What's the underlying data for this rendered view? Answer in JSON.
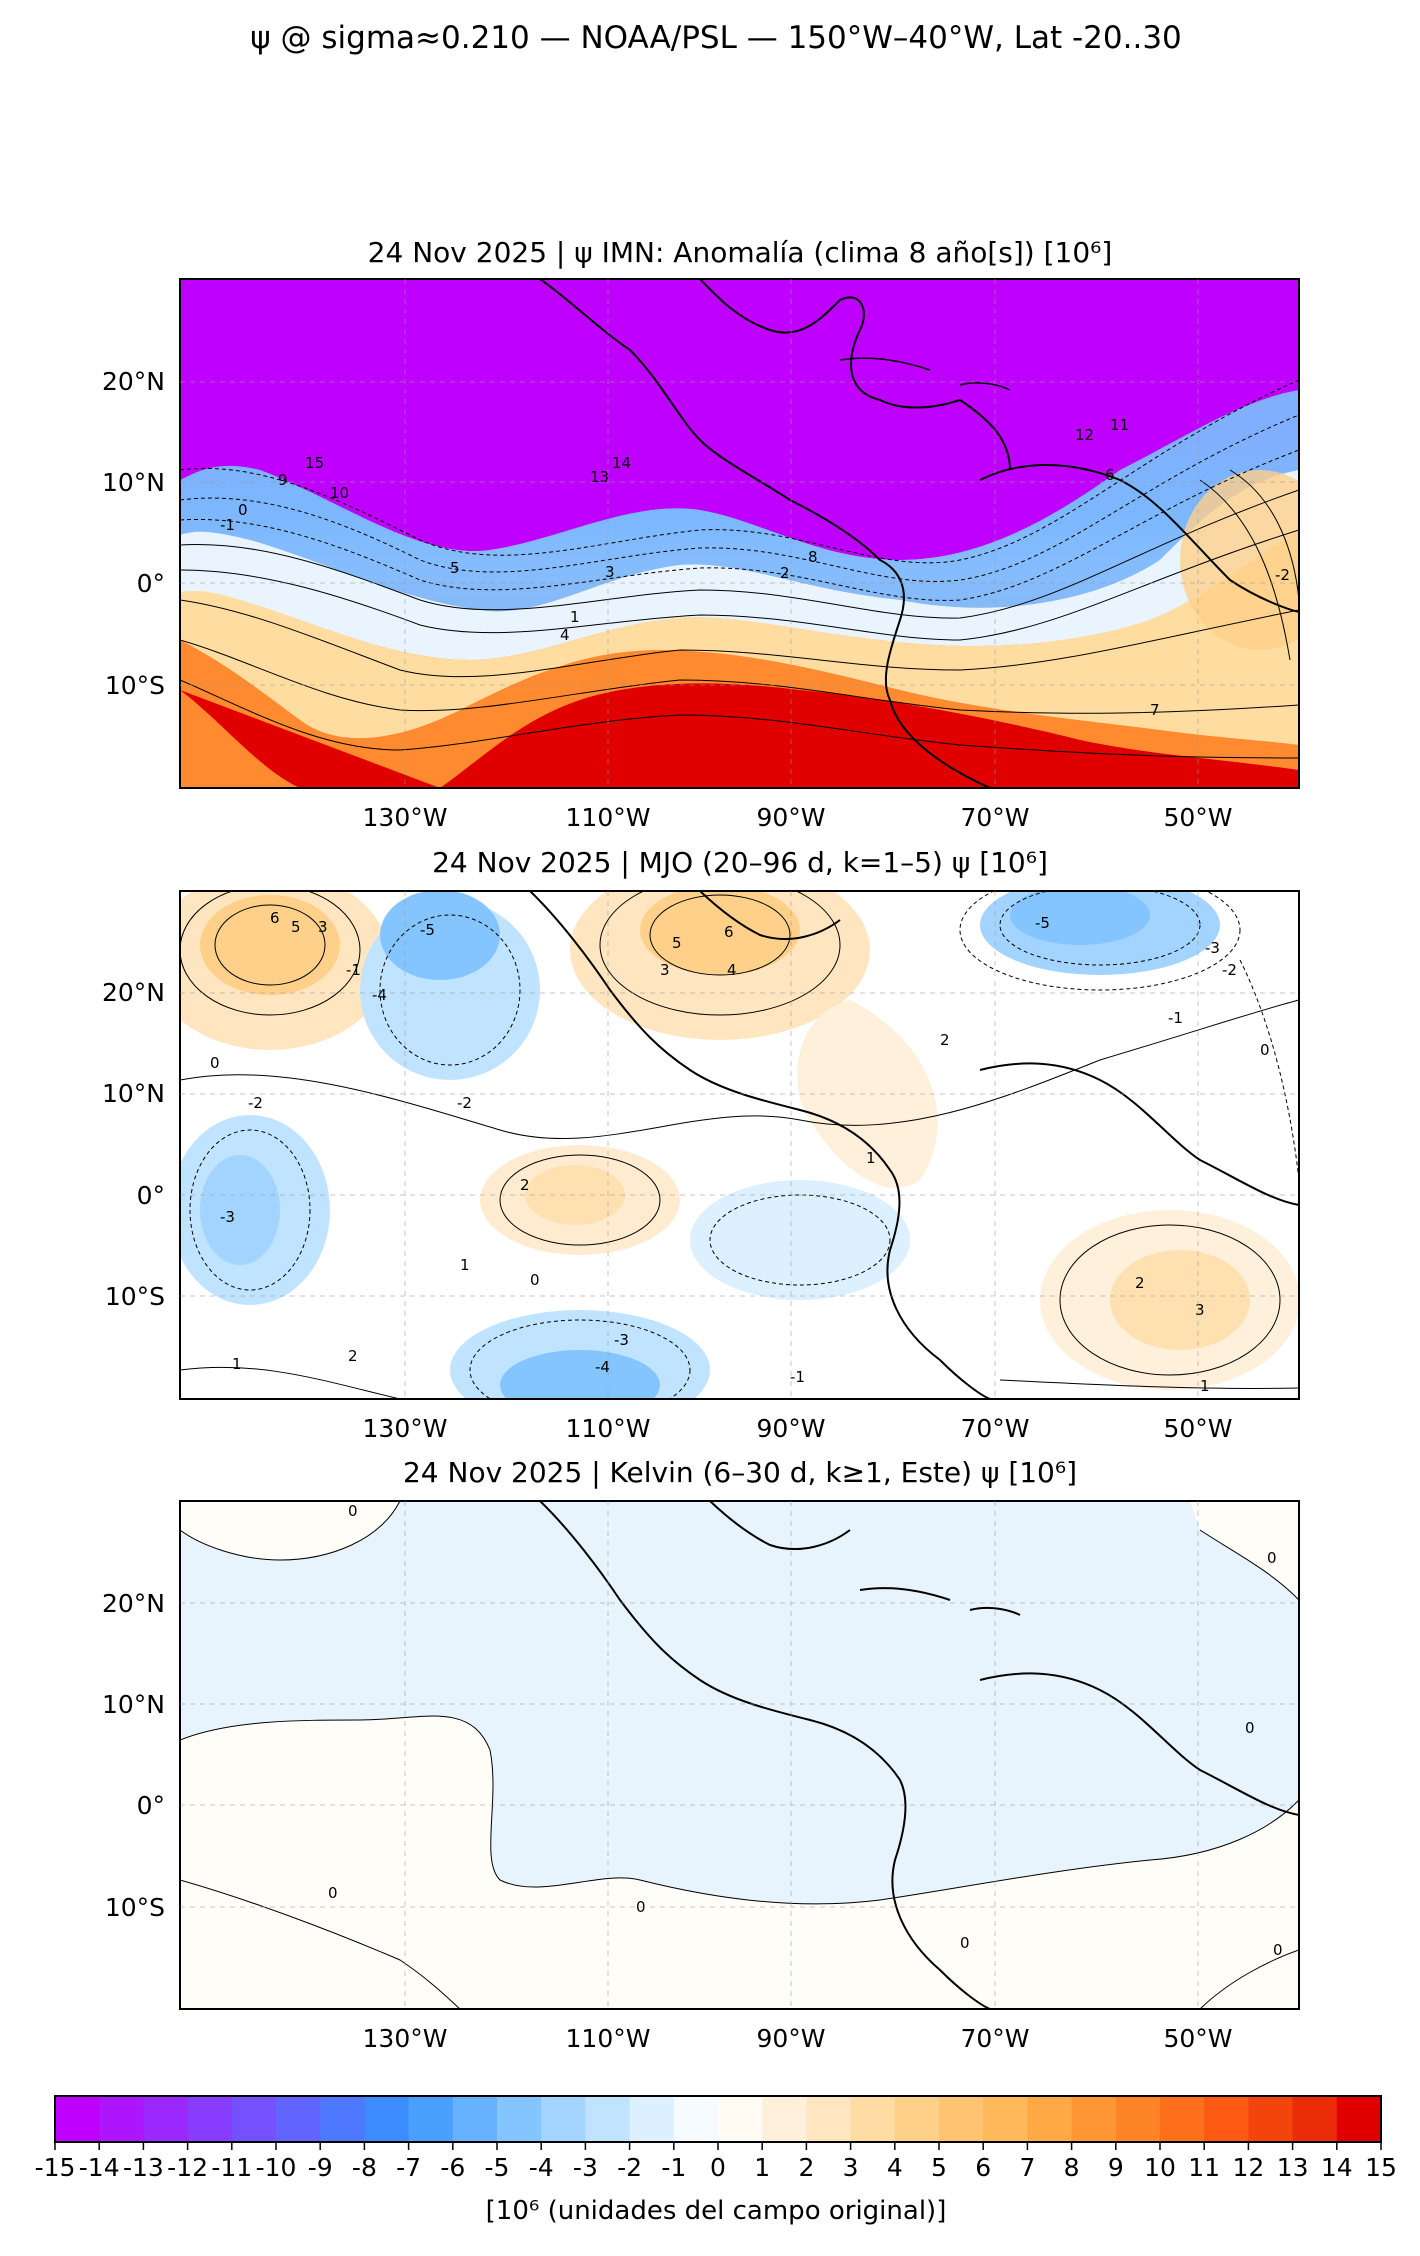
{
  "suptitle": "ψ @ sigma≈0.210 — NOAA/PSL — 150°W–40°W, Lat -20..30",
  "panels": [
    {
      "title": "24 Nov 2025 | ψ IMN: Anomalía (clima 8 año[s]) [10⁶]",
      "contour_labels": [
        "15",
        "14",
        "13",
        "12",
        "11",
        "10",
        "9",
        "8",
        "7",
        "6",
        "5",
        "4",
        "3",
        "2",
        "1",
        "0",
        "-1",
        "-2"
      ],
      "regime": "anomaly"
    },
    {
      "title": "24 Nov 2025 | MJO (20–96 d, k=1–5) ψ [10⁶]",
      "contour_labels": [
        "6",
        "5",
        "4",
        "3",
        "2",
        "1",
        "0",
        "-1",
        "-2",
        "-3",
        "-4",
        "-5"
      ],
      "regime": "mjo"
    },
    {
      "title": "24 Nov 2025 | Kelvin (6–30 d, k≥1, Este) ψ [10⁶]",
      "contour_labels": [
        "0"
      ],
      "regime": "kelvin"
    }
  ],
  "axes": {
    "lon_ticks": [
      "130°W",
      "110°W",
      "90°W",
      "70°W",
      "50°W"
    ],
    "lat_ticks": [
      "20°N",
      "10°N",
      "0°",
      "10°S"
    ],
    "lon_range": [
      -150,
      -40
    ],
    "lat_range": [
      -20,
      30
    ]
  },
  "colorbar": {
    "ticks": [
      "-15",
      "-14",
      "-13",
      "-12",
      "-11",
      "-10",
      "-9",
      "-8",
      "-7",
      "-6",
      "-5",
      "-4",
      "-3",
      "-2",
      "-1",
      "0",
      "1",
      "2",
      "3",
      "4",
      "5",
      "6",
      "7",
      "8",
      "9",
      "10",
      "11",
      "12",
      "13",
      "14",
      "15"
    ],
    "colors": [
      "#c000ff",
      "#ad14ff",
      "#9a28ff",
      "#873cff",
      "#7450ff",
      "#6164ff",
      "#4e78ff",
      "#3c8cff",
      "#4aa0ff",
      "#66b2ff",
      "#84c4ff",
      "#a2d4ff",
      "#c0e4ff",
      "#dcf0ff",
      "#f6fbff",
      "#fffaf2",
      "#fff0dc",
      "#ffe6c0",
      "#ffdca4",
      "#ffd08a",
      "#ffc472",
      "#ffb85a",
      "#ffa846",
      "#ff9834",
      "#ff8426",
      "#ff701c",
      "#ff5a14",
      "#f4440e",
      "#ea2c08",
      "#e00000"
    ],
    "label": "[10⁶ (unidades del campo original)]"
  }
}
